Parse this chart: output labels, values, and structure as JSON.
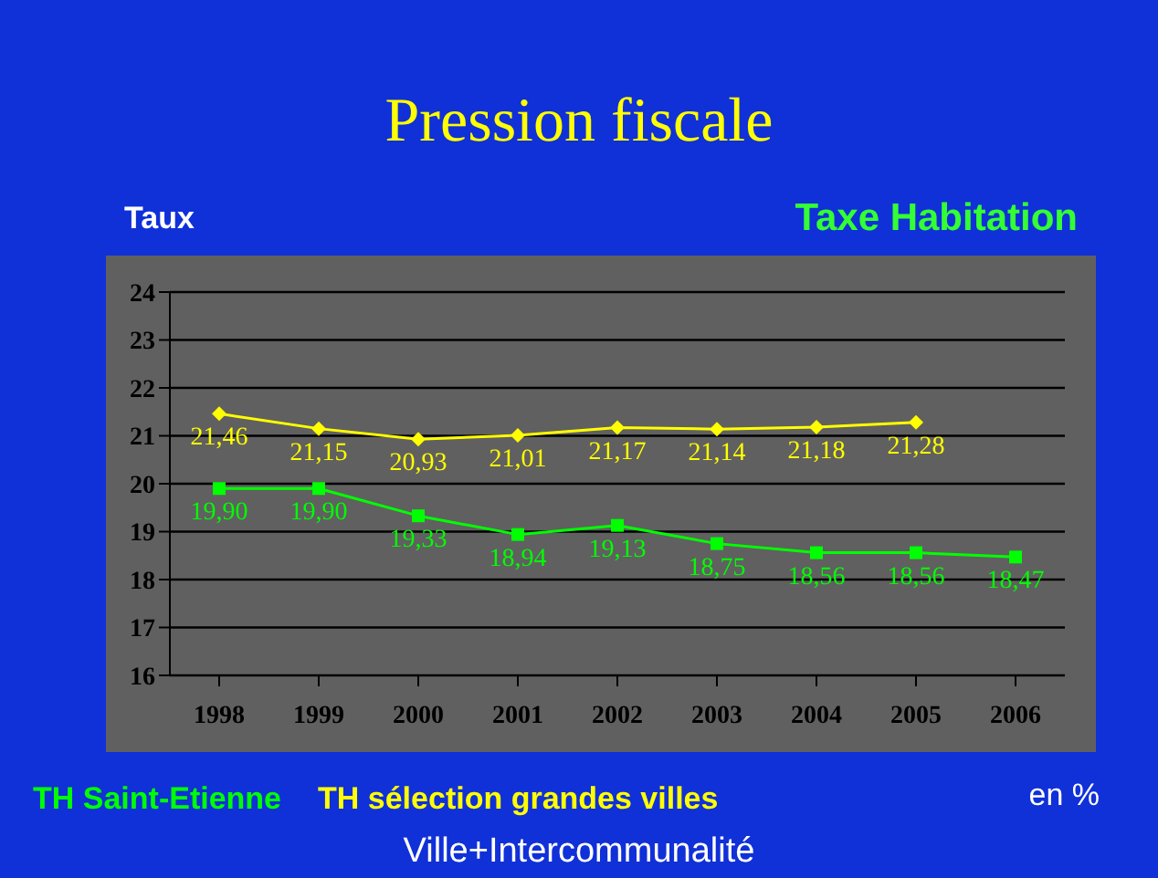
{
  "chart_data": {
    "type": "line",
    "title": "Pression fiscale",
    "subtitle": "Taxe Habitation",
    "ylabel": "Taux",
    "annotations": [
      "en %",
      "Ville+Intercommunalité"
    ],
    "categories": [
      "1998",
      "1999",
      "2000",
      "2001",
      "2002",
      "2003",
      "2004",
      "2005",
      "2006"
    ],
    "series": [
      {
        "name": "TH Saint-Etienne",
        "color": "#00ff00",
        "marker": "square",
        "values": [
          19.9,
          19.9,
          19.33,
          18.94,
          19.13,
          18.75,
          18.56,
          18.56,
          18.47
        ],
        "value_labels": [
          "19,90",
          "19,90",
          "19,33",
          "18,94",
          "19,13",
          "18,75",
          "18,56",
          "18,56",
          "18,47"
        ]
      },
      {
        "name": "TH sélection grandes villes",
        "color": "#ffff00",
        "marker": "diamond",
        "values": [
          21.46,
          21.15,
          20.93,
          21.01,
          21.17,
          21.14,
          21.18,
          21.28,
          null
        ],
        "value_labels": [
          "21,46",
          "21,15",
          "20,93",
          "21,01",
          "21,17",
          "21,14",
          "21,18",
          "21,28",
          null
        ]
      }
    ],
    "ylim": [
      16,
      24
    ],
    "yticks": [
      16,
      17,
      18,
      19,
      20,
      21,
      22,
      23,
      24
    ],
    "grid": "y",
    "legend": "bottom left",
    "line_style": "solid"
  }
}
